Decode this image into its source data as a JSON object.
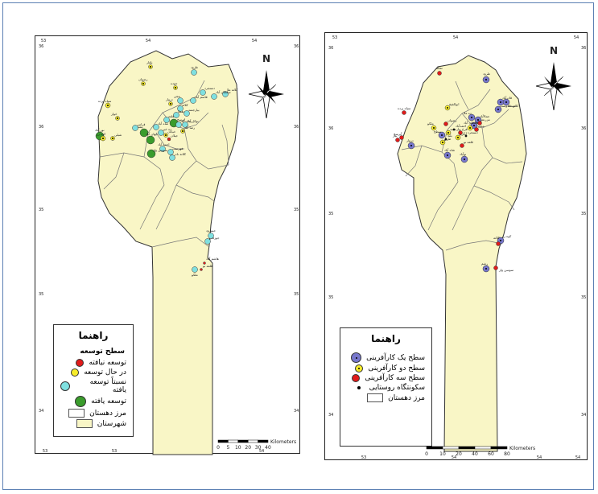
{
  "colors": {
    "land": "#f9f6c6",
    "boundary": "#777777",
    "red": "#e11b1b",
    "yellow": "#f6ec2a",
    "cyan": "#7fe0e0",
    "green": "#3a9c2c",
    "blue": "#7777cc"
  },
  "north_label": "N",
  "left_map": {
    "grid_top": [
      "53",
      "54",
      "54"
    ],
    "grid_bottom": [
      "53",
      "53",
      "54",
      "54"
    ],
    "grid_side": [
      "36",
      "36",
      "35",
      "35",
      "34"
    ],
    "legend": {
      "title": "راهنما",
      "subtitle": "سطح توسعه",
      "items": [
        {
          "label": "توسعه نیافته",
          "symbol": "red"
        },
        {
          "label": "در حال توسعه",
          "symbol": "yellow"
        },
        {
          "label": "نسبتاً توسعه یافته",
          "symbol": "cyan"
        },
        {
          "label": "توسعه یافته",
          "symbol": "green"
        },
        {
          "label": "مرز دهستان",
          "symbol": "box-white"
        },
        {
          "label": "شهرستان",
          "symbol": "box-land"
        }
      ]
    },
    "scale": {
      "ticks": [
        "0",
        "5",
        "10",
        "20",
        "30",
        "40"
      ],
      "unit": "Kilometers"
    },
    "places": [
      "طرود",
      "بلغار",
      "رضوان",
      "دروار",
      "سیاه پرده",
      "خوار",
      "جوده",
      "کلاته ملا",
      "سلطان آباد",
      "دستجرد",
      "قاسم آباد",
      "مجن",
      "کلاته",
      "بیارجمند",
      "دهملا",
      "ابرسج",
      "قلعه",
      "زمان آباد",
      "توکل آباد",
      "شاه آباد",
      "پشت",
      "جهان آباد",
      "نور آباد",
      "کوه زر",
      "شبلی",
      "احمد آباد",
      "فهرست",
      "کلاته نادر",
      "سوسن وار",
      "جیلان",
      "خیابان",
      "رضا آباد",
      "ده خیر",
      "قرامن",
      "جوزقان",
      "جیمرود",
      "ملکو",
      "قلعه نو",
      "هاشم آباد"
    ]
  },
  "right_map": {
    "grid_top": [
      "53",
      "54",
      "54"
    ],
    "grid_bottom": [
      "53",
      "54",
      "54",
      "54"
    ],
    "grid_side": [
      "36",
      "36",
      "35",
      "35",
      "34"
    ],
    "legend": {
      "title": "راهنما",
      "items": [
        {
          "label": "سطح یک کارآفرینی",
          "symbol": "blue"
        },
        {
          "label": "سطح دو کارآفرینی",
          "symbol": "yellow-dot"
        },
        {
          "label": "سطح سه کارآفرینی",
          "symbol": "red"
        },
        {
          "label": "سکونتگاه روستایی",
          "symbol": "dot"
        },
        {
          "label": "مرز دهستان",
          "symbol": "box-white"
        }
      ]
    },
    "scale": {
      "ticks": [
        "0",
        "10",
        "20",
        "40",
        "60",
        "80"
      ],
      "unit": "Kilometers"
    },
    "places": [
      "طرود",
      "تمکه",
      "سیاه پرده",
      "ابوالفتح",
      "قادرآباد",
      "کلاته ملا",
      "مهماندوست",
      "جمالآباد",
      "ده ملا",
      "کلاته",
      "مزرعه",
      "سلطان آباد",
      "رضوان",
      "ملکو",
      "بیارجمند",
      "سطح",
      "دروار",
      "شاه آباد",
      "بیار",
      "آبرسج",
      "قلعه نو",
      "کوه زر",
      "کلاته",
      "رشم",
      "سوسن وار",
      "فرخ",
      "مجن",
      "طرق",
      "آبگرم",
      "نوآباد",
      "بلند",
      "دستجرد",
      "احمدآباد"
    ]
  }
}
